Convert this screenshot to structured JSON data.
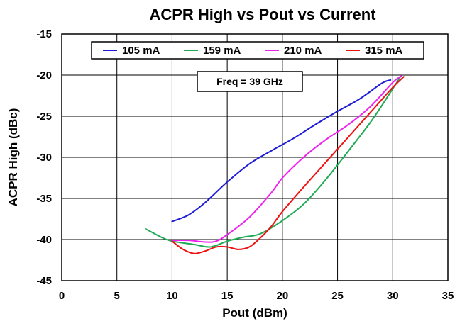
{
  "chart_data": {
    "type": "line",
    "title": "ACPR High vs Pout vs Current",
    "xlabel": "Pout (dBm)",
    "ylabel": "ACPR High (dBc)",
    "xlim": [
      0,
      35
    ],
    "ylim": [
      -45,
      -15
    ],
    "xticks": [
      0,
      5,
      10,
      15,
      20,
      25,
      30,
      35
    ],
    "yticks": [
      -15,
      -20,
      -25,
      -30,
      -35,
      -40,
      -45
    ],
    "grid": true,
    "legend_position": "top",
    "annotation": "Freq = 39 GHz",
    "series": [
      {
        "name": "105 mA",
        "color": "#1c1cd8",
        "x": [
          10,
          11.5,
          13,
          15,
          17,
          19,
          21,
          23,
          25,
          27,
          29,
          29.8
        ],
        "y": [
          -37.8,
          -37,
          -35.5,
          -33,
          -30.8,
          -29.2,
          -27.7,
          -26,
          -24.4,
          -22.9,
          -21,
          -20.6
        ]
      },
      {
        "name": "159 mA",
        "color": "#1eaa55",
        "x": [
          7.6,
          9,
          10,
          12,
          13.5,
          15,
          16.5,
          18,
          20,
          22,
          24,
          26,
          28,
          29.5,
          30.7
        ],
        "y": [
          -38.7,
          -39.7,
          -40.2,
          -40.6,
          -40.9,
          -40.2,
          -39.7,
          -39.3,
          -37.7,
          -35.6,
          -32.6,
          -29.2,
          -25.7,
          -22.7,
          -20.2
        ]
      },
      {
        "name": "210 mA",
        "color": "#ee22ee",
        "x": [
          10,
          11.5,
          13,
          14,
          15,
          17,
          19,
          20,
          22,
          24,
          26,
          28,
          30,
          30.8
        ],
        "y": [
          -40.1,
          -40.1,
          -40.3,
          -40.2,
          -39.4,
          -37.3,
          -34.3,
          -32.5,
          -29.9,
          -27.8,
          -26,
          -23.8,
          -20.9,
          -20.1
        ]
      },
      {
        "name": "315 mA",
        "color": "#ee1111",
        "x": [
          10,
          11,
          12,
          13,
          14,
          15,
          16,
          17,
          18,
          19,
          20,
          22,
          24,
          26,
          28,
          30,
          31
        ],
        "y": [
          -40.2,
          -41.2,
          -41.7,
          -41.4,
          -40.9,
          -40.9,
          -41.2,
          -40.9,
          -39.8,
          -38.4,
          -36.6,
          -33.5,
          -30.5,
          -27.5,
          -24.5,
          -21.5,
          -20.2
        ]
      }
    ]
  }
}
